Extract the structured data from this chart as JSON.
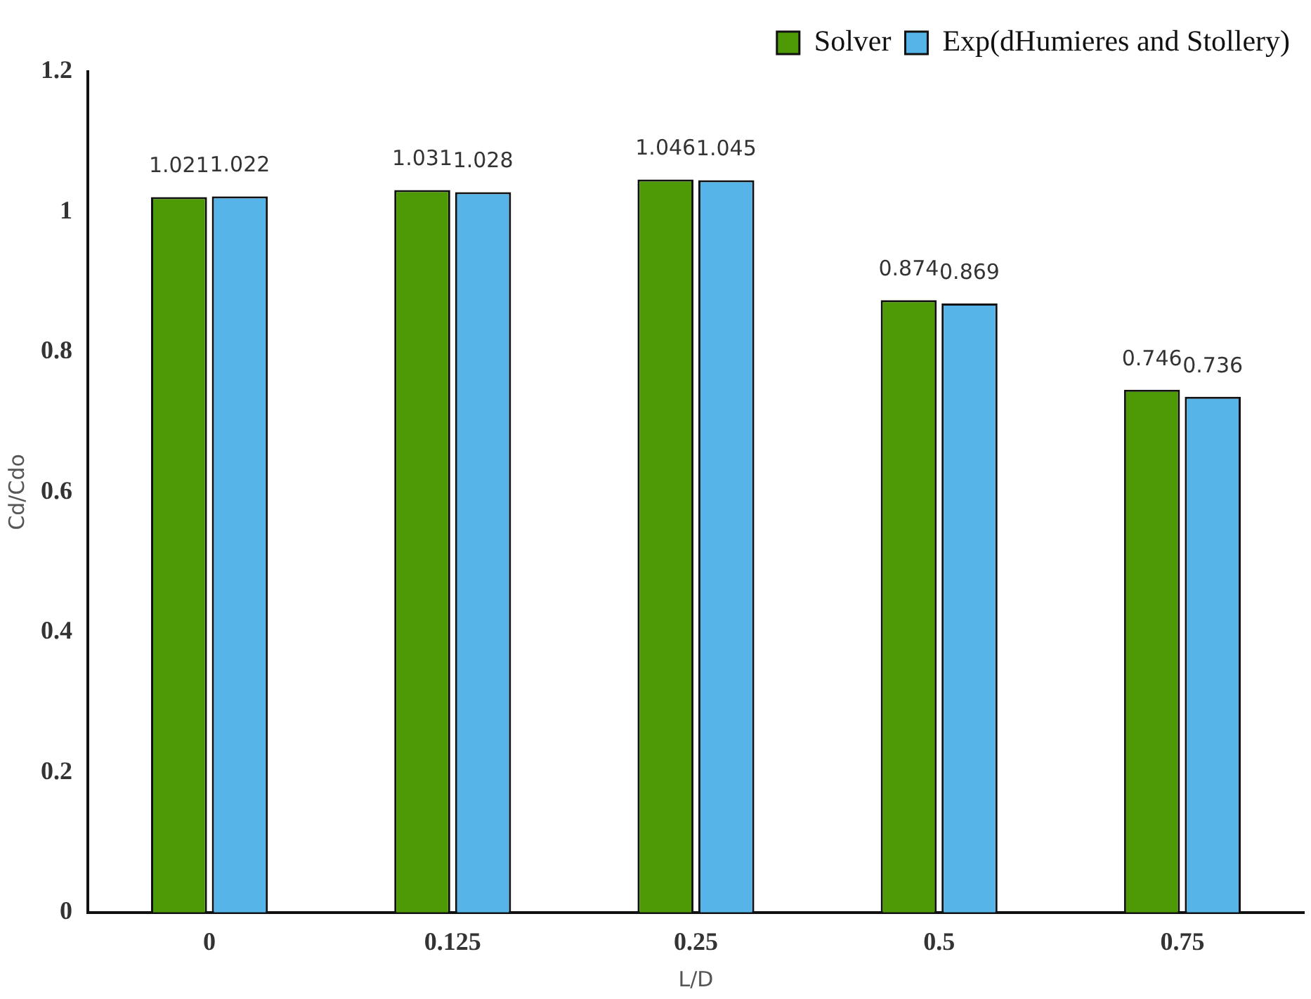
{
  "chart_data": {
    "type": "bar",
    "xlabel": "L/D",
    "ylabel": "Cd/Cdo",
    "categories": [
      "0",
      "0.125",
      "0.25",
      "0.5",
      "0.75"
    ],
    "series": [
      {
        "name": "Solver",
        "color": "#4e9a06",
        "values": [
          1.021,
          1.031,
          1.046,
          0.874,
          0.746
        ]
      },
      {
        "name": "Exp(dHumieres and Stollery)",
        "color": "#56b4e9",
        "values": [
          1.022,
          1.028,
          1.045,
          0.869,
          0.736
        ]
      }
    ],
    "ylim": [
      0,
      1.2
    ],
    "yticks": [
      0,
      0.2,
      0.4,
      0.6,
      0.8,
      1,
      1.2
    ],
    "legend": "top right",
    "data_labels": true
  }
}
